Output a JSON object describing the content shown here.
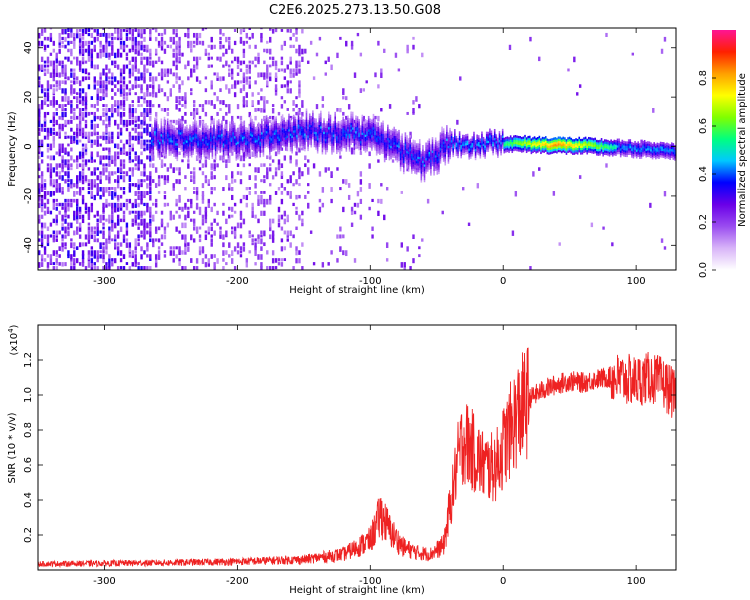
{
  "title": "C2E6.2025.273.13.50.G08",
  "chart_data": [
    {
      "type": "heatmap",
      "name": "spectrogram",
      "xlabel": "Height of straight line (km)",
      "ylabel": "Frequency (Hz)",
      "xlim": [
        -350,
        130
      ],
      "ylim": [
        -50,
        48
      ],
      "xticks": [
        -300,
        -200,
        -100,
        0,
        100
      ],
      "yticks": [
        -40,
        -20,
        0,
        20,
        40
      ],
      "colorbar": {
        "label": "Normalized spectral amplitude",
        "range": [
          0,
          1
        ],
        "ticks": [
          "0.0",
          "0.2",
          "0.4",
          "0.6",
          "0.8"
        ],
        "colors": [
          "#ffffff",
          "#d8b4f8",
          "#9a4cf0",
          "#6a00e8",
          "#0000ff",
          "#00c8ff",
          "#00ff80",
          "#80ff00",
          "#ffff00",
          "#ffa000",
          "#ff2000",
          "#ff1493"
        ]
      },
      "ridge": {
        "description": "Signal ridge near 0 Hz",
        "points": [
          {
            "x": -260,
            "f": 3
          },
          {
            "x": -200,
            "f": 2
          },
          {
            "x": -150,
            "f": 6
          },
          {
            "x": -100,
            "f": 4
          },
          {
            "x": -60,
            "f": -7
          },
          {
            "x": -40,
            "f": 1
          },
          {
            "x": 0,
            "f": 1
          },
          {
            "x": 60,
            "f": 0
          },
          {
            "x": 130,
            "f": -2
          }
        ]
      }
    },
    {
      "type": "line",
      "name": "snr",
      "xlabel": "Height of straight line (km)",
      "ylabel": "SNR (10 * v/v)",
      "yscale_label": "(x10",
      "yscale_exp": "4",
      "yscale_close": ")",
      "xlim": [
        -350,
        130
      ],
      "ylim": [
        0,
        14000
      ],
      "xticks": [
        -300,
        -200,
        -100,
        0,
        100
      ],
      "yticks": [
        0.2,
        0.4,
        0.6,
        0.8,
        1.0,
        1.2
      ],
      "color": "#ee2222",
      "series": [
        {
          "name": "SNR",
          "x": [
            -350,
            -300,
            -250,
            -200,
            -150,
            -120,
            -100,
            -92,
            -85,
            -75,
            -65,
            -55,
            -45,
            -40,
            -35,
            -30,
            -25,
            -20,
            -15,
            -10,
            -5,
            0,
            10,
            20,
            30,
            40,
            50,
            60,
            70,
            80,
            90,
            100,
            110,
            120,
            125,
            130
          ],
          "y": [
            350,
            380,
            420,
            480,
            600,
            900,
            1700,
            3200,
            2200,
            1300,
            1000,
            900,
            1400,
            3500,
            6000,
            7500,
            7000,
            6500,
            6000,
            5800,
            6000,
            7000,
            8800,
            9800,
            10300,
            10600,
            10800,
            10700,
            10900,
            11000,
            10900,
            10800,
            11000,
            10700,
            10300,
            9800
          ]
        }
      ]
    }
  ]
}
